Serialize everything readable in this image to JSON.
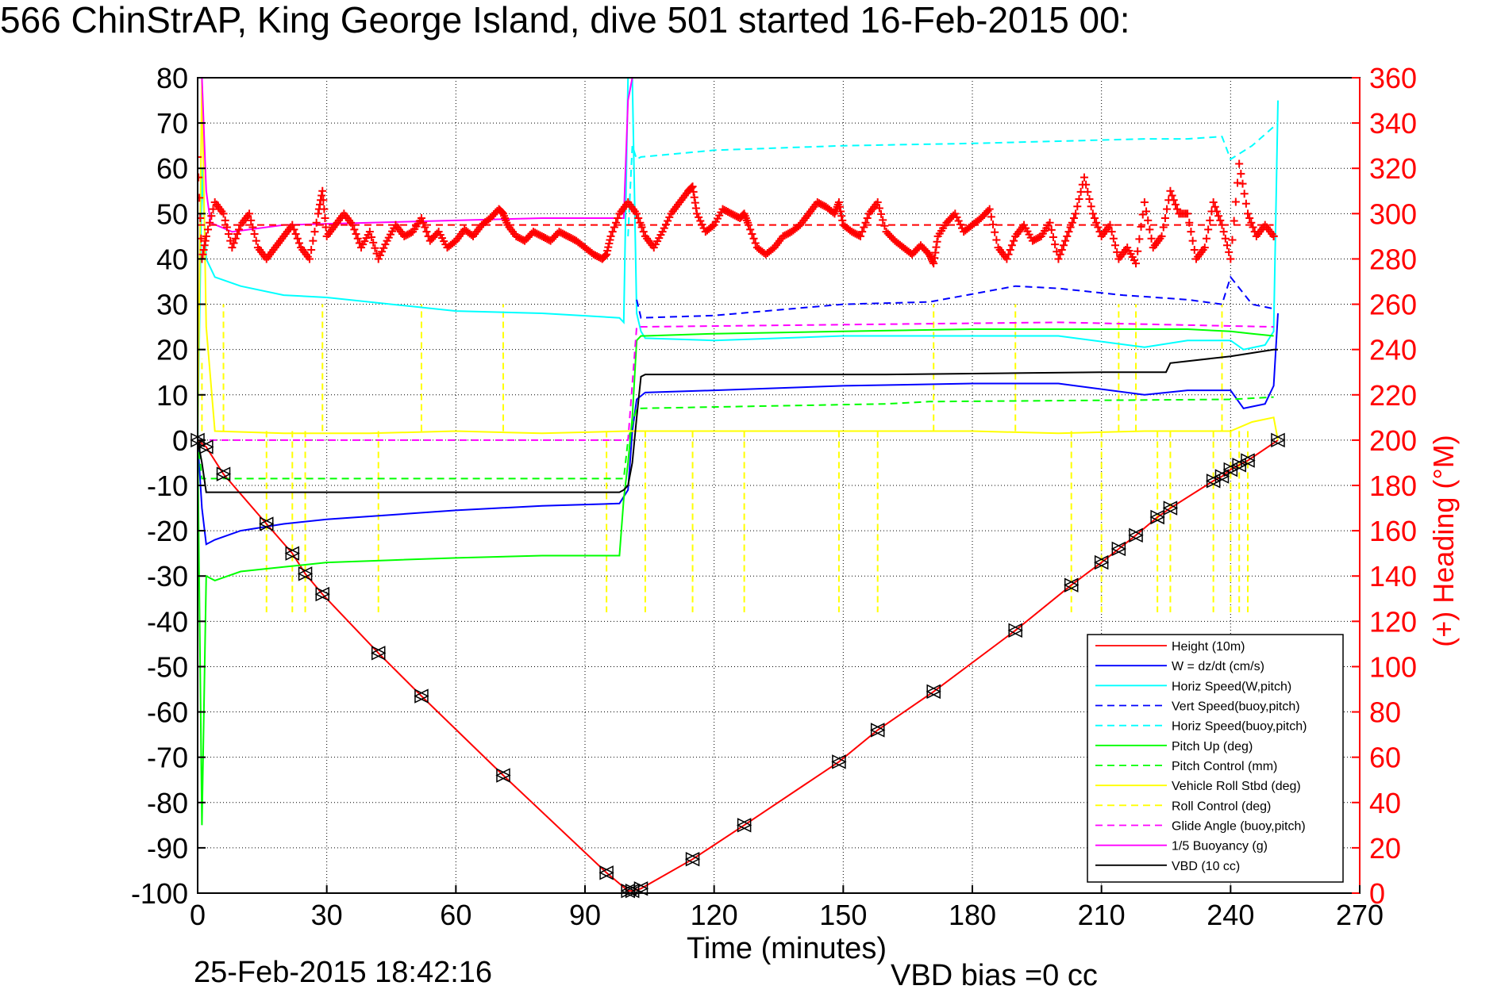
{
  "title": "566 ChinStrAP, King George Island, dive 501 started 16-Feb-2015 00:",
  "footer": {
    "date": "25-Feb-2015 18:42:16",
    "vbd_bias": "VBD bias =0 cc"
  },
  "colors": {
    "height": "#ff0000",
    "w": "#0000ff",
    "horiz": "#00ffff",
    "pitch": "#00ff00",
    "roll": "#ffff00",
    "glide": "#ff00ff",
    "buoy": "#ff00ff",
    "vbd": "#000000",
    "heading": "#ff0000",
    "axis": "#000000"
  },
  "chart_data": {
    "type": "line",
    "xlabel": "Time (minutes)",
    "ylabel": "",
    "y2label": "(+) Heading (°M)",
    "xlim": [
      0,
      270
    ],
    "ylim": [
      -100,
      80
    ],
    "y2lim": [
      0,
      360
    ],
    "xticks": [
      0,
      30,
      60,
      90,
      120,
      150,
      180,
      210,
      240,
      270
    ],
    "yticks": [
      -100,
      -90,
      -80,
      -70,
      -60,
      -50,
      -40,
      -30,
      -20,
      -10,
      0,
      10,
      20,
      30,
      40,
      50,
      60,
      70,
      80
    ],
    "y2ticks": [
      0,
      20,
      40,
      60,
      80,
      100,
      120,
      140,
      160,
      180,
      200,
      220,
      240,
      260,
      280,
      300,
      320,
      340,
      360
    ],
    "grid": true,
    "legend_position": "bottom-right",
    "legend": [
      {
        "label": "Height (10m)",
        "color": "#ff0000",
        "dash": false
      },
      {
        "label": "W = dz/dt (cm/s)",
        "color": "#0000ff",
        "dash": false
      },
      {
        "label": "Horiz Speed(W,pitch)",
        "color": "#00ffff",
        "dash": false
      },
      {
        "label": "Vert Speed(buoy,pitch)",
        "color": "#0000ff",
        "dash": true
      },
      {
        "label": "Horiz Speed(buoy,pitch)",
        "color": "#00ffff",
        "dash": true
      },
      {
        "label": "Pitch Up (deg)",
        "color": "#00ff00",
        "dash": false
      },
      {
        "label": "Pitch Control (mm)",
        "color": "#00ff00",
        "dash": true
      },
      {
        "label": "Vehicle Roll Stbd (deg)",
        "color": "#ffff00",
        "dash": false
      },
      {
        "label": "Roll Control (deg)",
        "color": "#ffff00",
        "dash": true
      },
      {
        "label": "Glide Angle (buoy,pitch)",
        "color": "#ff00ff",
        "dash": true
      },
      {
        "label": "1/5 Buoyancy (g)",
        "color": "#ff00ff",
        "dash": false
      },
      {
        "label": "VBD (10 cc)",
        "color": "#000000",
        "dash": false
      }
    ],
    "series": [
      {
        "key": "height",
        "color": "#ff0000",
        "dash": false,
        "x": [
          0,
          2,
          6,
          16,
          22,
          25,
          29,
          42,
          52,
          71,
          95,
          100,
          101,
          103,
          115,
          127,
          149,
          158,
          171,
          190,
          203,
          210,
          214,
          218,
          223,
          226,
          236,
          238,
          240,
          242,
          244,
          251
        ],
        "y": [
          0,
          -1.5,
          -7.5,
          -18.5,
          -25,
          -29.5,
          -34,
          -47,
          -56.5,
          -74,
          -95.5,
          -99.5,
          -99.5,
          -99,
          -92.5,
          -85,
          -71,
          -64,
          -55.5,
          -42,
          -32,
          -27,
          -24,
          -21,
          -17,
          -15,
          -9,
          -8,
          -6.5,
          -5.5,
          -4.5,
          0
        ]
      },
      {
        "key": "w",
        "color": "#0000ff",
        "dash": false,
        "x": [
          0,
          1,
          2,
          4,
          10,
          20,
          30,
          45,
          60,
          80,
          98,
          100,
          101,
          102,
          104,
          120,
          150,
          180,
          200,
          220,
          230,
          240,
          243,
          248,
          250,
          251
        ],
        "y": [
          0,
          -15,
          -23,
          -22,
          -20,
          -18.5,
          -17.5,
          -16.5,
          -15.5,
          -14.5,
          -14,
          -11,
          2,
          9,
          10.5,
          11,
          12,
          12.5,
          12.5,
          10,
          11,
          11,
          7,
          8,
          12,
          28
        ]
      },
      {
        "key": "horiz",
        "color": "#00ffff",
        "dash": false,
        "x": [
          0,
          1,
          2,
          4,
          10,
          20,
          30,
          45,
          60,
          80,
          98,
          99,
          100,
          101,
          102,
          103,
          104,
          120,
          150,
          180,
          200,
          220,
          230,
          240,
          243,
          248,
          250,
          251
        ],
        "y": [
          -1,
          60,
          40,
          36,
          34,
          32,
          31.5,
          30,
          28.5,
          28,
          27,
          26,
          80,
          80,
          28,
          24,
          22.5,
          22,
          23,
          23,
          23,
          20.5,
          22,
          22,
          20,
          21,
          24,
          75
        ]
      },
      {
        "key": "vert_buoy",
        "color": "#0000ff",
        "dash": true,
        "x": [
          102,
          103,
          120,
          150,
          170,
          190,
          200,
          215,
          230,
          238,
          240,
          245,
          250
        ],
        "y": [
          31,
          27,
          27.5,
          30,
          30.5,
          34,
          33.5,
          32,
          31,
          30,
          36,
          30,
          29
        ]
      },
      {
        "key": "horiz_buoy",
        "color": "#00ffff",
        "dash": true,
        "x": [
          100,
          101,
          102,
          103,
          120,
          150,
          180,
          200,
          220,
          230,
          238,
          240,
          245,
          251
        ],
        "y": [
          45,
          65,
          62,
          62.5,
          64,
          65,
          65.5,
          66,
          66.5,
          66.5,
          67,
          62,
          65,
          70
        ]
      },
      {
        "key": "pitch_up",
        "color": "#00ff00",
        "dash": false,
        "x": [
          0,
          1,
          2,
          4,
          10,
          20,
          30,
          45,
          60,
          80,
          98,
          99,
          100,
          101,
          102,
          103,
          104,
          120,
          150,
          180,
          200,
          220,
          230,
          240,
          245,
          250
        ],
        "y": [
          0,
          -85,
          -30,
          -31,
          -29,
          -28,
          -27,
          -26.5,
          -26,
          -25.5,
          -25.5,
          -13,
          -5,
          5,
          22,
          23,
          23,
          23.5,
          24,
          24.5,
          24.5,
          24.5,
          24.5,
          24,
          23.5,
          23
        ]
      },
      {
        "key": "pitch_ctrl",
        "color": "#00ff00",
        "dash": true,
        "x": [
          0,
          1,
          99,
          100,
          102,
          130,
          160,
          170,
          240,
          250
        ],
        "y": [
          0,
          -8.5,
          -8.5,
          0,
          7,
          7.5,
          8,
          8.5,
          9,
          9.5
        ]
      },
      {
        "key": "roll",
        "color": "#ffff00",
        "dash": false,
        "x": [
          0,
          1,
          2,
          4,
          20,
          40,
          60,
          80,
          100,
          120,
          150,
          180,
          200,
          220,
          240,
          245,
          250,
          251
        ],
        "y": [
          0,
          80,
          25,
          2,
          1.5,
          1.5,
          2,
          1.5,
          2,
          2,
          2,
          2,
          1.5,
          2,
          2,
          4,
          5,
          0
        ]
      },
      {
        "key": "glide",
        "color": "#ff00ff",
        "dash": true,
        "x": [
          0,
          100,
          102,
          150,
          200,
          250
        ],
        "y": [
          0,
          0,
          25,
          25.5,
          26,
          25
        ]
      },
      {
        "key": "buoy",
        "color": "#ff00ff",
        "dash": false,
        "x": [
          0,
          1,
          2,
          3,
          8,
          20,
          40,
          60,
          80,
          99,
          100,
          101
        ],
        "y": [
          80,
          80,
          55,
          48,
          46,
          47.5,
          48,
          48.5,
          49,
          49,
          75,
          80
        ]
      },
      {
        "key": "vbd",
        "color": "#000000",
        "dash": false,
        "x": [
          0,
          1,
          2,
          98,
          99,
          100,
          101,
          102,
          103,
          104,
          130,
          160,
          190,
          210,
          225,
          226,
          240,
          250,
          251
        ],
        "y": [
          0,
          -5,
          -11.5,
          -11.5,
          -11,
          -10,
          -5,
          5,
          14,
          14.5,
          14.5,
          14.5,
          14.8,
          15,
          15,
          17,
          18.5,
          20,
          20
        ]
      }
    ],
    "roll_control_dips": [
      {
        "x": 1,
        "to": 18
      },
      {
        "x": 16,
        "to": -38
      },
      {
        "x": 22,
        "to": -38
      },
      {
        "x": 25,
        "to": -38
      },
      {
        "x": 42,
        "to": -38
      },
      {
        "x": 95,
        "to": -38
      },
      {
        "x": 104,
        "to": -38
      },
      {
        "x": 115,
        "to": -38
      },
      {
        "x": 127,
        "to": -38
      },
      {
        "x": 149,
        "to": -38
      },
      {
        "x": 158,
        "to": -38
      },
      {
        "x": 203,
        "to": -38
      },
      {
        "x": 210,
        "to": -38
      },
      {
        "x": 223,
        "to": -38
      },
      {
        "x": 226,
        "to": -38
      },
      {
        "x": 236,
        "to": -38
      },
      {
        "x": 240,
        "to": -38
      },
      {
        "x": 242,
        "to": -38
      },
      {
        "x": 244,
        "to": -38
      },
      {
        "x": 6,
        "to": 30
      },
      {
        "x": 29,
        "to": 30
      },
      {
        "x": 52,
        "to": 30
      },
      {
        "x": 71,
        "to": 30
      },
      {
        "x": 171,
        "to": 30
      },
      {
        "x": 190,
        "to": 30
      },
      {
        "x": 214,
        "to": 30
      },
      {
        "x": 218,
        "to": 30
      },
      {
        "x": 238,
        "to": 30
      }
    ],
    "heading_dashed": {
      "x": [
        0,
        250
      ],
      "y": [
        295,
        295
      ],
      "color": "#ff0000"
    },
    "heading": {
      "x": [
        0,
        1,
        2,
        4,
        6,
        8,
        10,
        12,
        14,
        16,
        18,
        20,
        22,
        24,
        26,
        28,
        29,
        30,
        32,
        34,
        36,
        38,
        40,
        42,
        44,
        46,
        48,
        50,
        52,
        54,
        56,
        58,
        60,
        62,
        64,
        66,
        68,
        70,
        71,
        72,
        74,
        76,
        78,
        80,
        82,
        84,
        86,
        88,
        90,
        92,
        94,
        95,
        96,
        98,
        100,
        102,
        104,
        106,
        108,
        110,
        112,
        114,
        115,
        116,
        118,
        120,
        122,
        124,
        126,
        127,
        128,
        130,
        132,
        134,
        136,
        138,
        140,
        142,
        144,
        146,
        148,
        149,
        150,
        152,
        154,
        156,
        158,
        160,
        162,
        164,
        166,
        168,
        170,
        171,
        172,
        174,
        176,
        178,
        180,
        182,
        184,
        186,
        188,
        190,
        192,
        194,
        196,
        198,
        200,
        202,
        204,
        206,
        208,
        210,
        212,
        214,
        216,
        218,
        220,
        222,
        224,
        226,
        228,
        230,
        232,
        234,
        236,
        238,
        240,
        242,
        244,
        246,
        248,
        250
      ],
      "y": [
        325,
        280,
        290,
        305,
        300,
        285,
        295,
        300,
        285,
        280,
        285,
        290,
        295,
        285,
        280,
        300,
        310,
        290,
        295,
        300,
        295,
        285,
        292,
        280,
        288,
        295,
        290,
        292,
        298,
        288,
        292,
        285,
        288,
        293,
        290,
        295,
        298,
        302,
        300,
        295,
        290,
        288,
        292,
        290,
        288,
        292,
        290,
        288,
        285,
        282,
        280,
        282,
        290,
        300,
        305,
        300,
        290,
        285,
        292,
        300,
        305,
        310,
        312,
        300,
        292,
        295,
        302,
        300,
        298,
        300,
        295,
        285,
        282,
        285,
        290,
        292,
        295,
        300,
        305,
        303,
        300,
        305,
        295,
        292,
        290,
        300,
        305,
        292,
        288,
        285,
        282,
        286,
        282,
        278,
        290,
        296,
        300,
        292,
        295,
        298,
        302,
        285,
        280,
        290,
        295,
        288,
        290,
        296,
        280,
        290,
        300,
        316,
        300,
        290,
        295,
        280,
        285,
        278,
        305,
        285,
        290,
        310,
        300,
        300,
        280,
        285,
        305,
        295,
        280,
        322,
        300,
        290,
        295,
        290
      ]
    }
  }
}
